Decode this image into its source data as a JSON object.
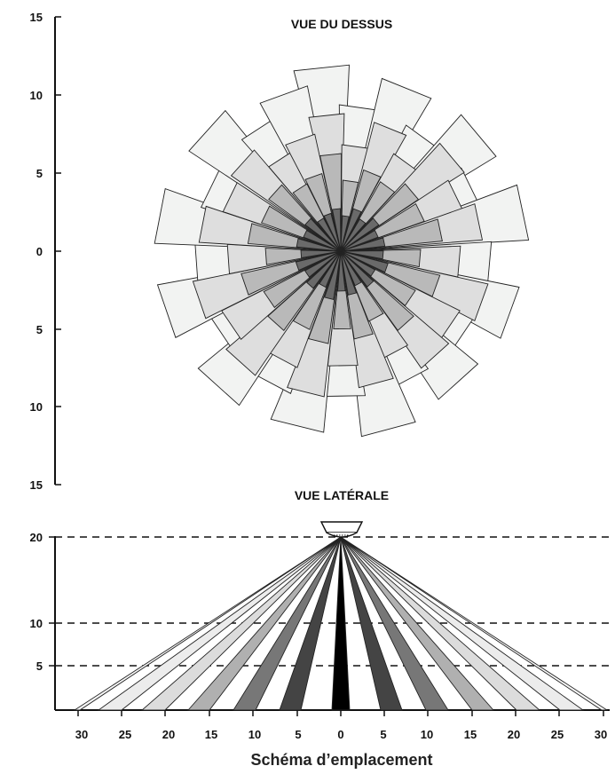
{
  "top_view": {
    "title": "VUE DU DESSUS",
    "y_ticks": [
      "15",
      "10",
      "5",
      "0",
      "5",
      "10",
      "15"
    ],
    "fills": {
      "outer": "#f2f3f2",
      "mid": "#dedede",
      "inner": "#b9b9b9",
      "core": "#6a6a6a"
    }
  },
  "side_view": {
    "title": "VUE LATÉRALE",
    "y_ticks": [
      "20",
      "10",
      "5"
    ],
    "x_ticks": [
      "30",
      "25",
      "20",
      "15",
      "10",
      "5",
      "0",
      "5",
      "10",
      "15",
      "20",
      "25",
      "30"
    ],
    "beam_fills": [
      "#000000",
      "#444444",
      "#777777",
      "#b0b0b0",
      "#dcdcdc",
      "#ececec",
      "#f6f6f6"
    ]
  },
  "caption": "Schéma d’emplacement"
}
